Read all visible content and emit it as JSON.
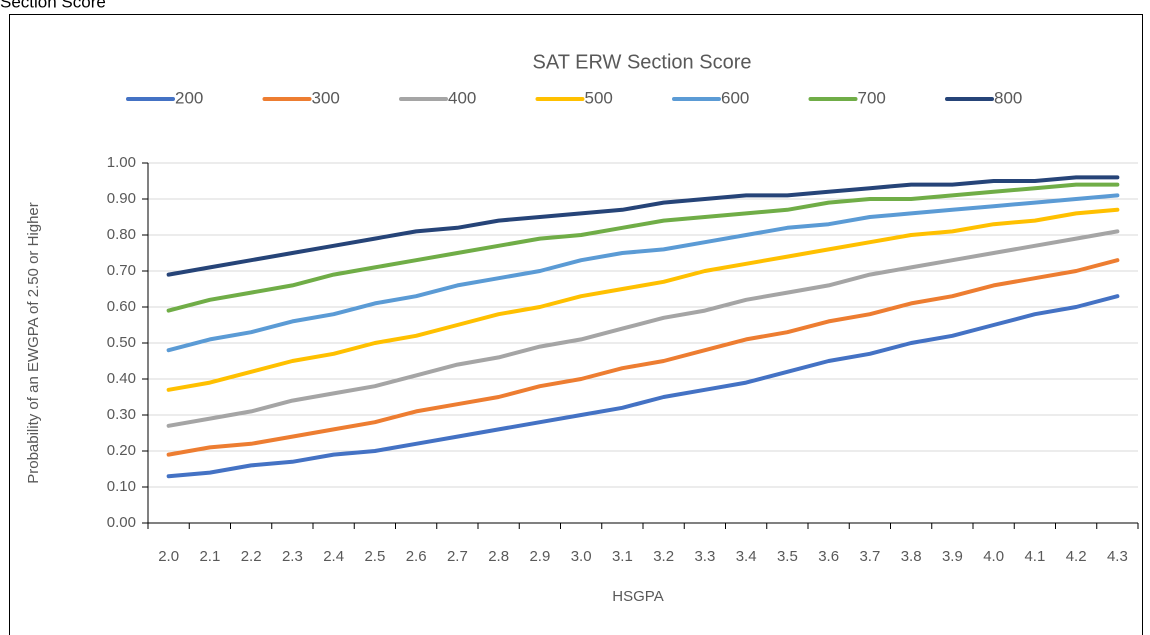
{
  "caption": "Section Score",
  "chart_data": {
    "type": "line",
    "legend_title": "SAT ERW Section Score",
    "x_label": "HSGPA",
    "y_label": "Probability of an EWGPA of 2.50 or Higher",
    "categories": [
      "2.0",
      "2.1",
      "2.2",
      "2.3",
      "2.4",
      "2.5",
      "2.6",
      "2.7",
      "2.8",
      "2.9",
      "3.0",
      "3.1",
      "3.2",
      "3.3",
      "3.4",
      "3.5",
      "3.6",
      "3.7",
      "3.8",
      "3.9",
      "4.0",
      "4.1",
      "4.2",
      "4.3"
    ],
    "series": [
      {
        "name": "200",
        "color": "#4472c4",
        "values": [
          0.13,
          0.14,
          0.16,
          0.17,
          0.19,
          0.2,
          0.22,
          0.24,
          0.26,
          0.28,
          0.3,
          0.32,
          0.35,
          0.37,
          0.39,
          0.42,
          0.45,
          0.47,
          0.5,
          0.52,
          0.55,
          0.58,
          0.6,
          0.63
        ]
      },
      {
        "name": "300",
        "color": "#ed7d31",
        "values": [
          0.19,
          0.21,
          0.22,
          0.24,
          0.26,
          0.28,
          0.31,
          0.33,
          0.35,
          0.38,
          0.4,
          0.43,
          0.45,
          0.48,
          0.51,
          0.53,
          0.56,
          0.58,
          0.61,
          0.63,
          0.66,
          0.68,
          0.7,
          0.73
        ]
      },
      {
        "name": "400",
        "color": "#a5a5a5",
        "values": [
          0.27,
          0.29,
          0.31,
          0.34,
          0.36,
          0.38,
          0.41,
          0.44,
          0.46,
          0.49,
          0.51,
          0.54,
          0.57,
          0.59,
          0.62,
          0.64,
          0.66,
          0.69,
          0.71,
          0.73,
          0.75,
          0.77,
          0.79,
          0.81
        ]
      },
      {
        "name": "500",
        "color": "#ffc000",
        "values": [
          0.37,
          0.39,
          0.42,
          0.45,
          0.47,
          0.5,
          0.52,
          0.55,
          0.58,
          0.6,
          0.63,
          0.65,
          0.67,
          0.7,
          0.72,
          0.74,
          0.76,
          0.78,
          0.8,
          0.81,
          0.83,
          0.84,
          0.86,
          0.87
        ]
      },
      {
        "name": "600",
        "color": "#5b9bd5",
        "values": [
          0.48,
          0.51,
          0.53,
          0.56,
          0.58,
          0.61,
          0.63,
          0.66,
          0.68,
          0.7,
          0.73,
          0.75,
          0.76,
          0.78,
          0.8,
          0.82,
          0.83,
          0.85,
          0.86,
          0.87,
          0.88,
          0.89,
          0.9,
          0.91
        ]
      },
      {
        "name": "700",
        "color": "#70ad47",
        "values": [
          0.59,
          0.62,
          0.64,
          0.66,
          0.69,
          0.71,
          0.73,
          0.75,
          0.77,
          0.79,
          0.8,
          0.82,
          0.84,
          0.85,
          0.86,
          0.87,
          0.89,
          0.9,
          0.9,
          0.91,
          0.92,
          0.93,
          0.94,
          0.94
        ]
      },
      {
        "name": "800",
        "color": "#264478",
        "values": [
          0.69,
          0.71,
          0.73,
          0.75,
          0.77,
          0.79,
          0.81,
          0.82,
          0.84,
          0.85,
          0.86,
          0.87,
          0.89,
          0.9,
          0.91,
          0.91,
          0.92,
          0.93,
          0.94,
          0.94,
          0.95,
          0.95,
          0.96,
          0.96
        ]
      }
    ],
    "ylim": [
      0,
      1
    ],
    "yticks": [
      {
        "value": 0,
        "label": "0.00"
      },
      {
        "value": 0.1,
        "label": "0.10"
      },
      {
        "value": 0.2,
        "label": "0.20"
      },
      {
        "value": 0.3,
        "label": "0.30"
      },
      {
        "value": 0.4,
        "label": "0.40"
      },
      {
        "value": 0.5,
        "label": "0.50"
      },
      {
        "value": 0.6,
        "label": "0.60"
      },
      {
        "value": 0.7,
        "label": "0.70"
      },
      {
        "value": 0.8,
        "label": "0.80"
      },
      {
        "value": 0.9,
        "label": "0.90"
      },
      {
        "value": 1,
        "label": "1.00"
      }
    ],
    "grid": true,
    "legend": "top"
  }
}
